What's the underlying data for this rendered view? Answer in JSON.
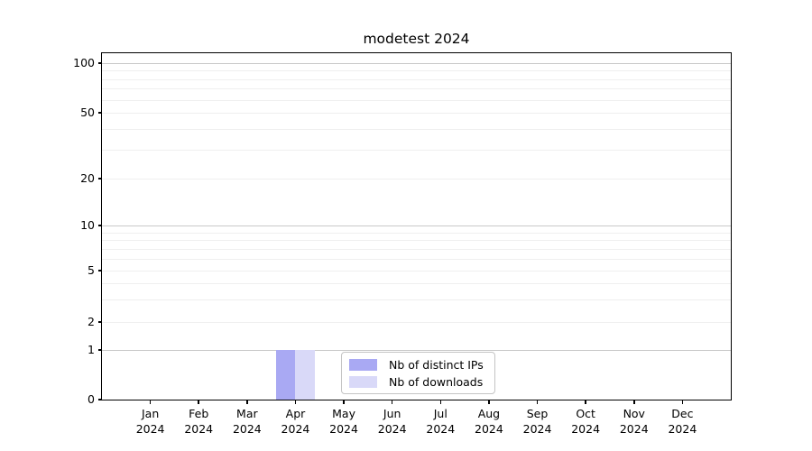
{
  "chart_data": {
    "type": "bar",
    "title": "modetest 2024",
    "categories": [
      "Jan 2024",
      "Feb 2024",
      "Mar 2024",
      "Apr 2024",
      "May 2024",
      "Jun 2024",
      "Jul 2024",
      "Aug 2024",
      "Sep 2024",
      "Oct 2024",
      "Nov 2024",
      "Dec 2024"
    ],
    "series": [
      {
        "name": "Nb of distinct IPs",
        "color": "#a9a9f3",
        "values": [
          0,
          0,
          0,
          1,
          0,
          0,
          0,
          0,
          0,
          0,
          0,
          0
        ]
      },
      {
        "name": "Nb of downloads",
        "color": "#d9d9f8",
        "values": [
          0,
          0,
          0,
          1,
          0,
          0,
          0,
          0,
          0,
          0,
          0,
          0
        ]
      }
    ],
    "y_ticks": [
      0,
      1,
      2,
      5,
      10,
      20,
      50,
      100
    ],
    "y_scale": "symlog (linear 0-1, logarithmic 1-100)",
    "ylim": [
      0,
      115
    ],
    "xlabel": "",
    "ylabel": "",
    "grid": "horizontal, major at decades, faint minors",
    "legend_position": "lower center"
  },
  "colors": {
    "background": "#ffffff",
    "axis": "#000000",
    "text": "#000000",
    "grid_major": "#c9c9c9",
    "grid_minor": "#efefef",
    "legend_border": "#c4c4c4"
  }
}
